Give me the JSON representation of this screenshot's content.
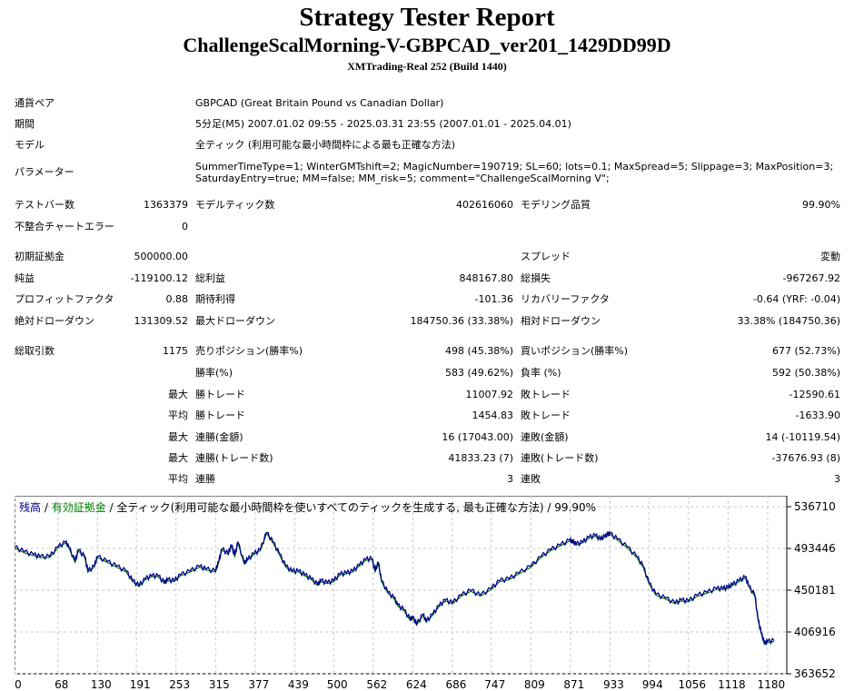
{
  "header": {
    "title": "Strategy Tester Report",
    "subtitle": "ChallengeScalMorning-V-GBPCAD_ver201_1429DD99D",
    "build": "XMTrading-Real 252 (Build 1440)"
  },
  "info": {
    "symbol_label": "通貨ペア",
    "symbol_value": "GBPCAD (Great Britain Pound vs Canadian Dollar)",
    "period_label": "期間",
    "period_value": "5分足(M5) 2007.01.02 09:55 - 2025.03.31 23:55 (2007.01.01 - 2025.04.01)",
    "model_label": "モデル",
    "model_value": "全ティック (利用可能な最小時間枠による最も正確な方法)",
    "params_label": "パラメーター",
    "params_line1": "SummerTimeType=1; WinterGMTshift=2; MagicNumber=190719; SL=60; lots=0.1; MaxSpread=5; Slippage=3; MaxPosition=3;",
    "params_line2": "SaturdayEntry=true; MM=false; MM_risk=5; comment=\"ChallengeScalMorning V\";"
  },
  "stats": {
    "bars_label": "テストバー数",
    "bars_value": "1363379",
    "ticks_label": "モデルティック数",
    "ticks_value": "402616060",
    "quality_label": "モデリング品質",
    "quality_value": "99.90%",
    "mismatch_label": "不整合チャートエラー",
    "mismatch_value": "0",
    "deposit_label": "初期証拠金",
    "deposit_value": "500000.00",
    "spread_label": "スプレッド",
    "spread_value": "変動",
    "net_label": "純益",
    "net_value": "-119100.12",
    "gross_profit_label": "総利益",
    "gross_profit_value": "848167.80",
    "gross_loss_label": "総損失",
    "gross_loss_value": "-967267.92",
    "pf_label": "プロフィットファクタ",
    "pf_value": "0.88",
    "payoff_label": "期待利得",
    "payoff_value": "-101.36",
    "recovery_label": "リカバリーファクタ",
    "recovery_value": "-0.64 (YRF: -0.04)",
    "abs_dd_label": "絶対ドローダウン",
    "abs_dd_value": "131309.52",
    "max_dd_label": "最大ドローダウン",
    "max_dd_value": "184750.36 (33.38%)",
    "rel_dd_label": "相対ドローダウン",
    "rel_dd_value": "33.38% (184750.36)",
    "total_label": "総取引数",
    "total_value": "1175",
    "short_label": "売りポジション(勝率%)",
    "short_value": "498 (45.38%)",
    "long_label": "買いポジション(勝率%)",
    "long_value": "677 (52.73%)",
    "winrate_label": "勝率(%)",
    "winrate_value": "583 (49.62%)",
    "lossrate_label": "負率 (%)",
    "lossrate_value": "592 (50.38%)",
    "max_label": "最大",
    "avg_label": "平均",
    "largest_win_label": "勝トレード",
    "largest_win_value": "11007.92",
    "largest_loss_label": "敗トレード",
    "largest_loss_value": "-12590.61",
    "avg_win_label": "勝トレード",
    "avg_win_value": "1454.83",
    "avg_loss_label": "敗トレード",
    "avg_loss_value": "-1633.90",
    "cons_win_amt_label": "連勝(金額)",
    "cons_win_amt_value": "16 (17043.00)",
    "cons_loss_amt_label": "連敗(金額)",
    "cons_loss_amt_value": "14 (-10119.54)",
    "cons_win_cnt_label": "連勝(トレード数)",
    "cons_win_cnt_value": "41833.23 (7)",
    "cons_loss_cnt_label": "連敗(トレード数)",
    "cons_loss_cnt_value": "-37676.93 (8)",
    "avg_cons_win_label": "連勝",
    "avg_cons_win_value": "3",
    "avg_cons_loss_label": "連敗",
    "avg_cons_loss_value": "3"
  },
  "chart_legend": {
    "balance": "残高",
    "sep1": " / ",
    "equity": "有効証拠金",
    "sep2": " / ",
    "model": "全ティック(利用可能な最小時間枠を使いすべてのティックを生成する, 最も正確な方法) / 99.90%"
  },
  "chart_data": {
    "type": "line",
    "title": "",
    "xlabel": "",
    "ylabel": "",
    "xlim": [
      0,
      1210
    ],
    "ylim": [
      363652,
      548000
    ],
    "grid": true,
    "x_ticks": [
      "0",
      "68",
      "130",
      "191",
      "253",
      "315",
      "377",
      "439",
      "500",
      "562",
      "624",
      "686",
      "747",
      "809",
      "871",
      "933",
      "994",
      "1056",
      "1118",
      "1180"
    ],
    "y_ticks": [
      "536710",
      "493446",
      "450181",
      "406916",
      "363652"
    ],
    "colors": {
      "balance": "#00008b",
      "equity": "#008000",
      "grid": "#c8c8c8"
    },
    "series": [
      {
        "name": "残高",
        "x": [
          0,
          15,
          30,
          40,
          55,
          68,
          80,
          85,
          95,
          100,
          110,
          115,
          125,
          130,
          145,
          160,
          175,
          185,
          195,
          205,
          215,
          225,
          235,
          240,
          250,
          260,
          275,
          290,
          300,
          315,
          320,
          325,
          335,
          340,
          345,
          350,
          360,
          365,
          375,
          385,
          395,
          405,
          415,
          425,
          435,
          445,
          455,
          465,
          475,
          480,
          490,
          500,
          510,
          520,
          530,
          540,
          550,
          560,
          565,
          570,
          575,
          585,
          595,
          600,
          610,
          620,
          624,
          630,
          640,
          645,
          655,
          665,
          675,
          686,
          700,
          715,
          730,
          747,
          760,
          775,
          790,
          809,
          825,
          840,
          855,
          870,
          875,
          880,
          890,
          900,
          910,
          918,
          925,
          930,
          933,
          945,
          960,
          975,
          985,
          994,
          1005,
          1020,
          1035,
          1045,
          1056,
          1070,
          1085,
          1100,
          1110,
          1118,
          1125,
          1135,
          1145,
          1150,
          1160,
          1165,
          1170,
          1175,
          1180,
          1190
        ],
        "values": [
          495000,
          490000,
          487000,
          485000,
          485000,
          495000,
          500000,
          495000,
          480000,
          492000,
          485000,
          470000,
          475000,
          485000,
          480000,
          475000,
          470000,
          460000,
          455000,
          462000,
          465000,
          465000,
          458000,
          461000,
          460000,
          466000,
          470000,
          475000,
          472000,
          470000,
          480000,
          493000,
          488000,
          497000,
          486000,
          500000,
          478000,
          482000,
          488000,
          492000,
          510000,
          500000,
          488000,
          475000,
          470000,
          470000,
          466000,
          462000,
          456000,
          460000,
          458000,
          460000,
          467000,
          468000,
          470000,
          476000,
          482000,
          483000,
          470000,
          479000,
          460000,
          448000,
          442000,
          435000,
          430000,
          420000,
          422000,
          415000,
          425000,
          418000,
          425000,
          434000,
          440000,
          437000,
          445000,
          450000,
          445000,
          452000,
          460000,
          462000,
          468000,
          475000,
          485000,
          492000,
          497000,
          502000,
          500000,
          498000,
          500000,
          505000,
          507000,
          503000,
          506000,
          508000,
          509000,
          503000,
          495000,
          485000,
          475000,
          458000,
          446000,
          442000,
          437000,
          440000,
          439000,
          445000,
          448000,
          452000,
          452000,
          453000,
          456000,
          460000,
          464000,
          455000,
          445000,
          420000,
          406000,
          395000,
          397000,
          398000
        ]
      }
    ]
  }
}
